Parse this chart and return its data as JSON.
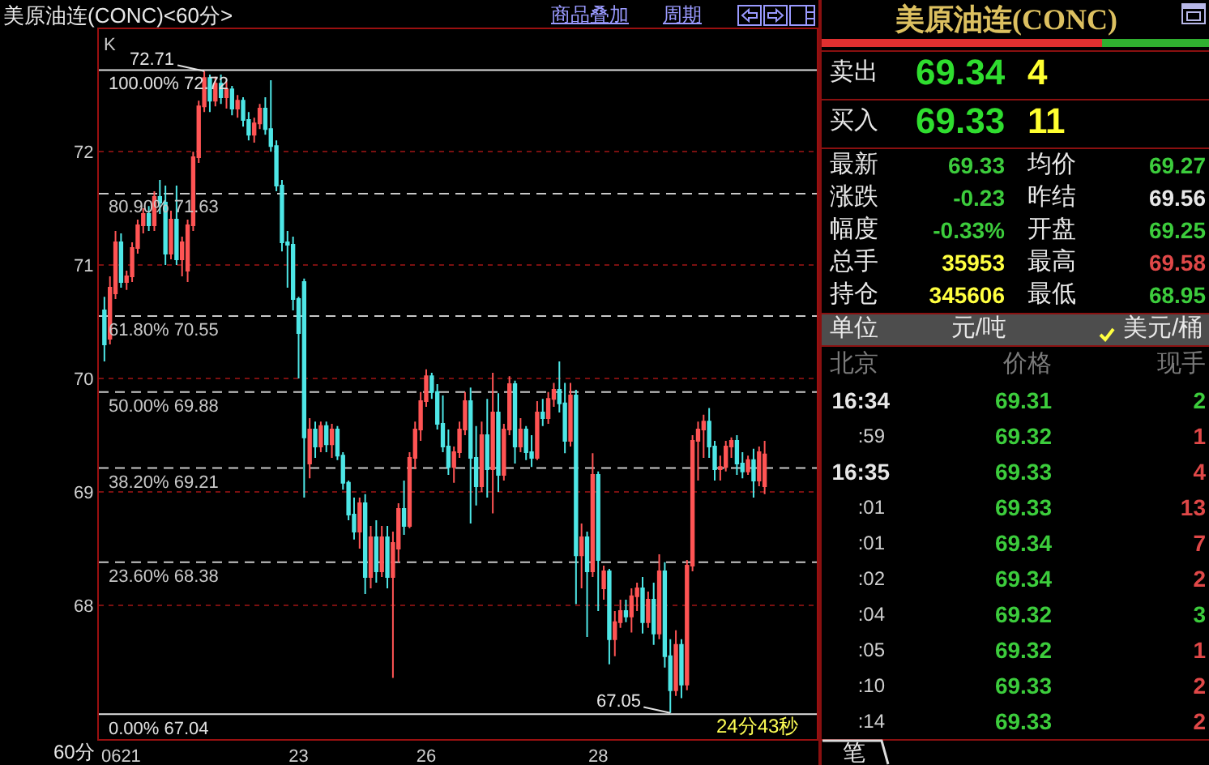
{
  "chart_data": [
    {
      "type": "candlestick",
      "title": "美原油连(CONC)<60分>",
      "categories": [
        null,
        null,
        null,
        "0621",
        null,
        null,
        null,
        null,
        null,
        null,
        null,
        null,
        null,
        null,
        null,
        null,
        null,
        null,
        null,
        null,
        null,
        null,
        null,
        null,
        null,
        null,
        null,
        null,
        null,
        null,
        null,
        null,
        null,
        null,
        null,
        "23",
        null,
        null,
        null,
        null,
        null,
        null,
        null,
        null,
        null,
        null,
        null,
        null,
        null,
        null,
        null,
        null,
        null,
        null,
        null,
        null,
        null,
        null,
        "26",
        null,
        null,
        null,
        null,
        null,
        null,
        null,
        null,
        null,
        null,
        null,
        null,
        null,
        null,
        null,
        null,
        null,
        null,
        null,
        null,
        null,
        null,
        null,
        null,
        null,
        null,
        null,
        null,
        null,
        null,
        "28",
        null,
        null,
        null,
        null,
        null,
        null,
        null,
        null,
        null,
        null,
        null,
        null,
        null,
        null,
        null,
        null,
        null,
        null,
        null,
        null,
        null,
        null,
        null,
        null,
        null,
        null,
        null,
        null,
        null,
        null
      ],
      "ohlc": [
        [
          70.6,
          70.72,
          70.15,
          70.3
        ],
        [
          70.35,
          70.9,
          70.3,
          70.8
        ],
        [
          70.75,
          71.3,
          70.7,
          71.2
        ],
        [
          71.2,
          71.28,
          70.8,
          70.85
        ],
        [
          70.85,
          70.95,
          70.78,
          70.9
        ],
        [
          70.9,
          71.2,
          70.85,
          71.15
        ],
        [
          71.15,
          71.4,
          71.1,
          71.35
        ],
        [
          71.35,
          71.5,
          71.28,
          71.45
        ],
        [
          71.45,
          71.52,
          71.3,
          71.35
        ],
        [
          71.35,
          71.65,
          71.3,
          71.6
        ],
        [
          71.6,
          71.75,
          71.45,
          71.55
        ],
        [
          71.55,
          71.7,
          71.0,
          71.1
        ],
        [
          71.1,
          71.48,
          71.05,
          71.4
        ],
        [
          71.4,
          71.7,
          71.0,
          71.05
        ],
        [
          71.05,
          71.25,
          70.9,
          71.2
        ],
        [
          70.95,
          71.4,
          70.85,
          71.35
        ],
        [
          71.35,
          72.0,
          71.3,
          71.95
        ],
        [
          71.95,
          72.45,
          71.9,
          72.4
        ],
        [
          72.4,
          72.71,
          72.35,
          72.65
        ],
        [
          72.65,
          72.68,
          72.35,
          72.45
        ],
        [
          72.45,
          72.66,
          72.4,
          72.6
        ],
        [
          72.6,
          72.68,
          72.42,
          72.48
        ],
        [
          72.48,
          72.62,
          72.38,
          72.55
        ],
        [
          72.55,
          72.58,
          72.32,
          72.38
        ],
        [
          72.38,
          72.5,
          72.3,
          72.45
        ],
        [
          72.45,
          72.48,
          72.22,
          72.28
        ],
        [
          72.28,
          72.35,
          72.1,
          72.15
        ],
        [
          72.15,
          72.3,
          72.08,
          72.25
        ],
        [
          72.25,
          72.42,
          72.2,
          72.38
        ],
        [
          72.38,
          72.48,
          72.15,
          72.2
        ],
        [
          72.2,
          72.63,
          72.0,
          72.05
        ],
        [
          72.05,
          72.1,
          71.65,
          71.7
        ],
        [
          71.7,
          71.75,
          71.12,
          71.2
        ],
        [
          71.2,
          71.3,
          70.8,
          71.18
        ],
        [
          71.18,
          71.25,
          70.6,
          70.7
        ],
        [
          70.7,
          70.72,
          70.0,
          70.4
        ],
        [
          70.85,
          70.88,
          68.95,
          69.48
        ],
        [
          69.25,
          69.65,
          69.12,
          69.55
        ],
        [
          69.55,
          69.62,
          69.3,
          69.4
        ],
        [
          69.4,
          69.62,
          69.35,
          69.58
        ],
        [
          69.58,
          69.62,
          69.35,
          69.42
        ],
        [
          69.42,
          69.6,
          69.3,
          69.55
        ],
        [
          69.55,
          69.58,
          69.28,
          69.32
        ],
        [
          69.32,
          69.35,
          69.02,
          69.08
        ],
        [
          69.08,
          69.1,
          68.75,
          68.8
        ],
        [
          68.8,
          68.95,
          68.58,
          68.65
        ],
        [
          68.65,
          68.95,
          68.5,
          68.9
        ],
        [
          68.9,
          68.98,
          68.1,
          68.25
        ],
        [
          68.25,
          68.7,
          68.15,
          68.6
        ],
        [
          68.6,
          68.75,
          68.2,
          68.3
        ],
        [
          68.3,
          68.7,
          68.25,
          68.6
        ],
        [
          68.6,
          68.7,
          68.15,
          68.25
        ],
        [
          68.25,
          68.65,
          67.36,
          68.55
        ],
        [
          68.5,
          68.9,
          68.38,
          68.85
        ],
        [
          68.85,
          69.1,
          68.62,
          68.7
        ],
        [
          68.7,
          69.35,
          68.68,
          69.3
        ],
        [
          69.3,
          69.62,
          69.2,
          69.55
        ],
        [
          69.55,
          69.88,
          69.45,
          69.8
        ],
        [
          69.8,
          70.08,
          69.75,
          70.02
        ],
        [
          70.02,
          70.05,
          69.82,
          69.88
        ],
        [
          69.88,
          69.95,
          69.55,
          69.6
        ],
        [
          69.6,
          69.85,
          69.35,
          69.4
        ],
        [
          69.4,
          69.55,
          69.15,
          69.22
        ],
        [
          69.22,
          69.4,
          69.08,
          69.35
        ],
        [
          69.35,
          69.62,
          69.3,
          69.55
        ],
        [
          69.55,
          69.88,
          69.5,
          69.8
        ],
        [
          69.8,
          69.92,
          68.72,
          69.3
        ],
        [
          69.3,
          69.58,
          68.88,
          69.05
        ],
        [
          69.05,
          69.62,
          69.0,
          69.5
        ],
        [
          69.5,
          69.82,
          68.95,
          69.2
        ],
        [
          69.2,
          70.05,
          68.81,
          69.7
        ],
        [
          69.7,
          69.87,
          69.0,
          69.15
        ],
        [
          69.15,
          69.6,
          69.1,
          69.55
        ],
        [
          69.55,
          70.02,
          69.5,
          69.95
        ],
        [
          69.95,
          69.98,
          69.25,
          69.4
        ],
        [
          69.4,
          69.65,
          69.35,
          69.55
        ],
        [
          69.55,
          69.58,
          69.28,
          69.35
        ],
        [
          69.35,
          69.5,
          69.22,
          69.3
        ],
        [
          69.3,
          69.8,
          69.28,
          69.7
        ],
        [
          69.7,
          69.82,
          69.58,
          69.65
        ],
        [
          69.65,
          69.88,
          69.6,
          69.82
        ],
        [
          69.82,
          69.96,
          69.75,
          69.9
        ],
        [
          69.9,
          70.15,
          69.7,
          69.78
        ],
        [
          69.78,
          69.96,
          69.34,
          69.45
        ],
        [
          69.45,
          69.96,
          69.4,
          69.85
        ],
        [
          69.85,
          69.9,
          68.01,
          68.44
        ],
        [
          68.44,
          68.72,
          68.15,
          68.6
        ],
        [
          68.6,
          68.65,
          67.72,
          68.3
        ],
        [
          68.3,
          69.34,
          68.25,
          69.15
        ],
        [
          69.15,
          69.18,
          67.95,
          68.4
        ],
        [
          68.15,
          68.35,
          68.05,
          68.3
        ],
        [
          68.3,
          68.32,
          67.48,
          67.7
        ],
        [
          67.7,
          67.95,
          67.55,
          67.85
        ],
        [
          67.85,
          68.05,
          67.8,
          67.95
        ],
        [
          67.95,
          68.05,
          67.85,
          67.9
        ],
        [
          67.9,
          68.15,
          67.76,
          68.08
        ],
        [
          68.08,
          68.2,
          67.95,
          68.15
        ],
        [
          68.15,
          68.25,
          67.75,
          67.85
        ],
        [
          67.85,
          68.12,
          67.8,
          68.05
        ],
        [
          68.05,
          68.2,
          67.65,
          67.75
        ],
        [
          67.75,
          68.45,
          67.7,
          68.3
        ],
        [
          68.3,
          68.38,
          67.45,
          67.55
        ],
        [
          67.55,
          67.7,
          67.05,
          67.25
        ],
        [
          67.25,
          67.78,
          67.2,
          67.65
        ],
        [
          67.65,
          67.7,
          67.18,
          67.3
        ],
        [
          67.3,
          68.4,
          67.25,
          68.35
        ],
        [
          68.35,
          69.5,
          68.3,
          69.45
        ],
        [
          69.45,
          69.62,
          69.1,
          69.55
        ],
        [
          69.55,
          69.68,
          69.3,
          69.62
        ],
        [
          69.62,
          69.74,
          69.3,
          69.4
        ],
        [
          69.4,
          69.45,
          69.1,
          69.2
        ],
        [
          69.2,
          69.32,
          69.1,
          69.22
        ],
        [
          69.22,
          69.45,
          69.18,
          69.4
        ],
        [
          69.4,
          69.48,
          69.3,
          69.45
        ],
        [
          69.45,
          69.5,
          69.15,
          69.25
        ],
        [
          69.25,
          69.35,
          69.12,
          69.18
        ],
        [
          69.18,
          69.32,
          69.15,
          69.28
        ],
        [
          69.28,
          69.38,
          68.95,
          69.1
        ],
        [
          69.1,
          69.4,
          69.05,
          69.35
        ],
        [
          69.05,
          69.45,
          68.98,
          69.33
        ]
      ],
      "ylim": [
        66.82,
        73.08
      ],
      "yticks": [
        68,
        69,
        70,
        71,
        72
      ],
      "grid": "y",
      "ref_lines": [
        {
          "axis": "y",
          "value": 72.72,
          "label": "100.00% 72.72",
          "color": "#e0e0e0",
          "line_style": "solid"
        },
        {
          "axis": "y",
          "value": 71.63,
          "label": "80.90% 71.63",
          "color": "#c8c8c8",
          "line_style": "dashed"
        },
        {
          "axis": "y",
          "value": 70.55,
          "label": "61.80% 70.55",
          "color": "#c8c8c8",
          "line_style": "dashed"
        },
        {
          "axis": "y",
          "value": 69.88,
          "label": "50.00% 69.88",
          "color": "#c8c8c8",
          "line_style": "dashed"
        },
        {
          "axis": "y",
          "value": 69.21,
          "label": "38.20% 69.21",
          "color": "#c8c8c8",
          "line_style": "dashed"
        },
        {
          "axis": "y",
          "value": 68.38,
          "label": "23.60% 68.38",
          "color": "#c8c8c8",
          "line_style": "dashed"
        },
        {
          "axis": "y",
          "value": 67.04,
          "label": "0.00% 67.04",
          "color": "#e0e0e0",
          "line_style": "solid"
        }
      ],
      "annotations": [
        "K",
        "60分",
        "24分43秒",
        "商品叠加",
        "周期",
        {
          "text": "72.71",
          "y": 72.71
        },
        {
          "text": "67.05",
          "y": 67.05
        }
      ]
    },
    {
      "type": "other",
      "title": "美原油连(CONC)",
      "annotations": [
        "卖出",
        "69.34",
        "4",
        "买入",
        "69.33",
        "11",
        "最新",
        "69.33",
        "均价",
        "69.27",
        "涨跌",
        "-0.23",
        "昨结",
        "69.56",
        "幅度",
        "-0.33%",
        "开盘",
        "69.25",
        "总手",
        "35953",
        "最高",
        "69.58",
        "持仓",
        "345606",
        "最低",
        "68.95",
        "单位",
        "元/吨",
        "美元/桶",
        "北京",
        "价格",
        "现手",
        "16:34",
        "69.31",
        "2",
        ":59",
        "69.32",
        "1",
        "16:35",
        "69.33",
        "4",
        ":01",
        "69.33",
        "13",
        ":01",
        "69.34",
        "7",
        ":02",
        "69.34",
        "2",
        ":04",
        "69.32",
        "3",
        ":05",
        "69.32",
        "1",
        ":10",
        "69.33",
        "2",
        ":14",
        "69.33",
        "2",
        "笔"
      ]
    }
  ]
}
